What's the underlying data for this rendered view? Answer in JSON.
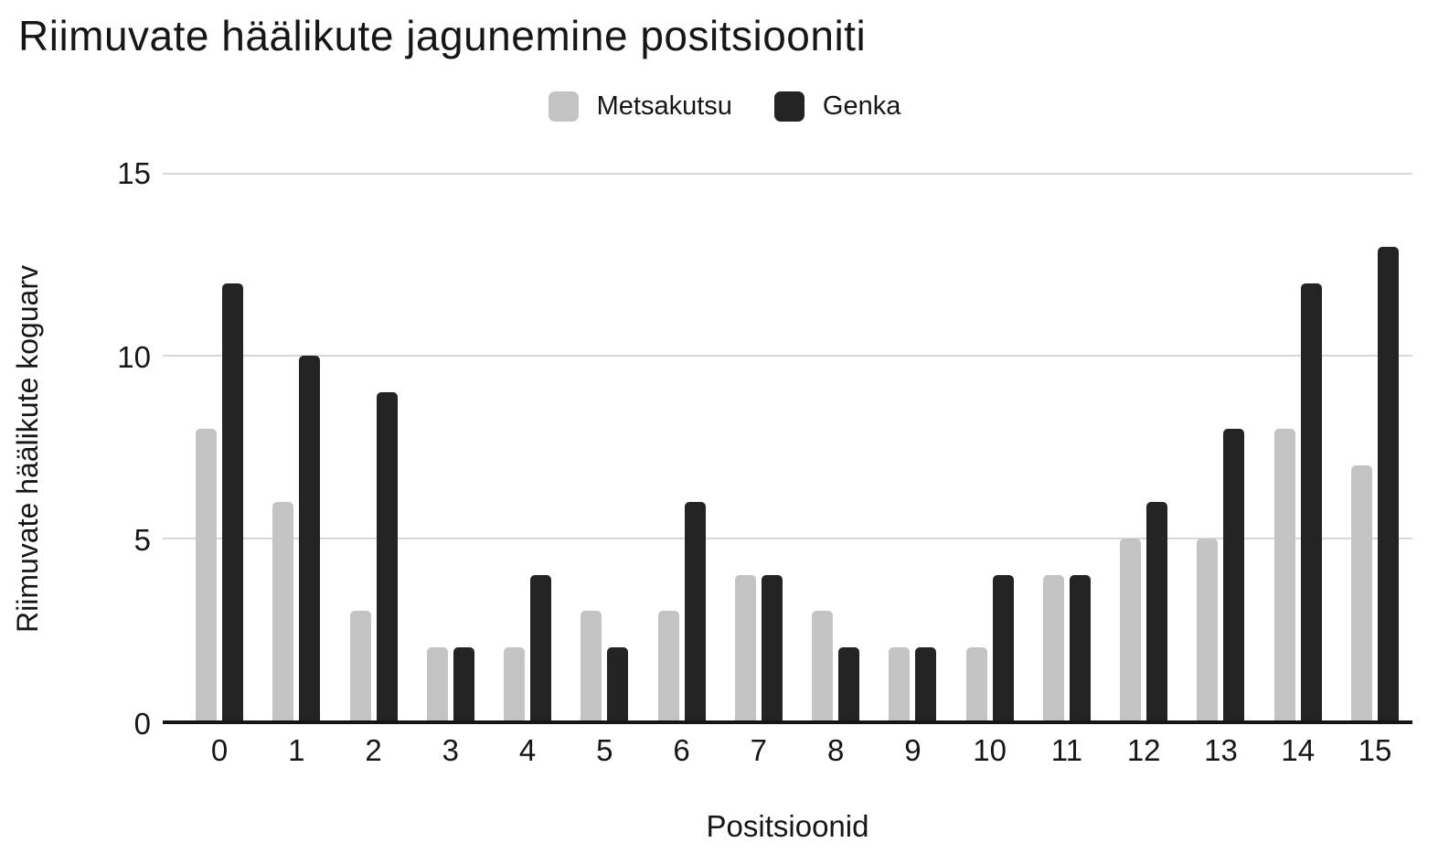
{
  "title": "Riimuvate häälikute jagunemine positsiooniti",
  "chart_data": {
    "type": "bar",
    "title": "Riimuvate häälikute jagunemine positsiooniti",
    "categories": [
      "0",
      "1",
      "2",
      "3",
      "4",
      "5",
      "6",
      "7",
      "8",
      "9",
      "10",
      "11",
      "12",
      "13",
      "14",
      "15"
    ],
    "series": [
      {
        "name": "Metsakutsu",
        "color": "#c3c3c3",
        "values": [
          8,
          6,
          3,
          2,
          2,
          3,
          3,
          4,
          3,
          2,
          2,
          4,
          5,
          5,
          8,
          7
        ]
      },
      {
        "name": "Genka",
        "color": "#232323",
        "values": [
          12,
          10,
          9,
          2,
          4,
          2,
          6,
          4,
          2,
          2,
          4,
          4,
          6,
          8,
          12,
          13
        ]
      }
    ],
    "xlabel": "Positsioonid",
    "ylabel": "Riimuvate häälikute koguarv",
    "ylim": [
      0,
      15
    ],
    "yticks": [
      0,
      5,
      10,
      15
    ],
    "grid": true,
    "legend_position": "top"
  }
}
